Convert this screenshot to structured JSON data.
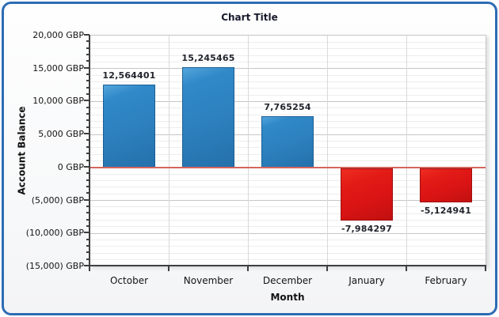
{
  "window": {
    "border_color": "#2d6cb3",
    "background": "#ffffff"
  },
  "chart_data": {
    "type": "bar",
    "title": "Chart Title",
    "xlabel": "Month",
    "ylabel": "Account Balance",
    "unit": "GBP",
    "categories": [
      "October",
      "November",
      "December",
      "January",
      "February"
    ],
    "values": [
      12564.401,
      15245.465,
      7765.254,
      -7984.297,
      -5124.941
    ],
    "bar_labels": [
      "12,564401",
      "15,245465",
      "7,765254",
      "-7,984297",
      "-5,124941"
    ],
    "ylim": [
      -15000,
      20000
    ],
    "y_major_step": 5000,
    "y_minor_step": 1000,
    "y_tick_labels": [
      "20,000 GBP",
      "15,000 GBP",
      "10,000 GBP",
      "5,000 GBP",
      "0 GBP",
      "(5,000) GBP",
      "(10,000) GBP",
      "(15,000) GBP"
    ],
    "grid": "horizontal major+minor, vertical category separators",
    "legend": "none",
    "zero_line": true,
    "colors": {
      "positive_bar": "#2e84c2",
      "negative_bar": "#dd1c1c",
      "zero_line": "#d4655e",
      "major_grid": "#c6c6c6",
      "minor_grid": "#ededed",
      "vertical_grid": "#d9d9d9",
      "axis_line": "#3f3f3f",
      "title_text": "#181a2c"
    }
  }
}
